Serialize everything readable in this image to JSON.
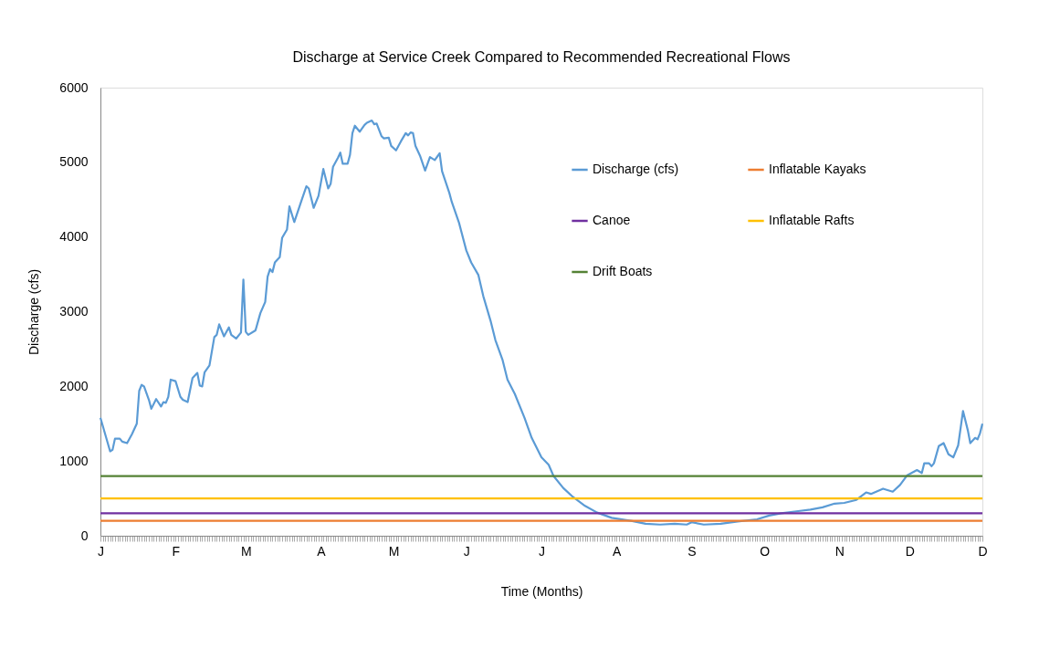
{
  "chart_data": {
    "type": "line",
    "title": "Discharge at Service Creek  Compared to Recommended Recreational Flows",
    "xlabel": "Time (Months)",
    "ylabel": "Discharge (cfs)",
    "categories": [
      "J",
      null,
      null,
      null,
      null,
      null,
      null,
      null,
      null,
      null,
      null,
      null,
      null,
      null,
      null,
      null,
      null,
      null,
      null,
      null,
      null,
      null,
      null,
      null,
      null,
      null,
      null,
      null,
      null,
      null,
      null,
      "F",
      null,
      null,
      null,
      null,
      null,
      null,
      null,
      null,
      null,
      null,
      null,
      null,
      null,
      null,
      null,
      null,
      null,
      null,
      null,
      null,
      null,
      null,
      null,
      null,
      null,
      null,
      null,
      null,
      "M",
      null,
      null,
      null,
      null,
      null,
      null,
      null,
      null,
      null,
      null,
      null,
      null,
      null,
      null,
      null,
      null,
      null,
      null,
      null,
      null,
      null,
      null,
      null,
      null,
      null,
      null,
      null,
      null,
      null,
      null,
      "A",
      null,
      null,
      null,
      null,
      null,
      null,
      null,
      null,
      null,
      null,
      null,
      null,
      null,
      null,
      null,
      null,
      null,
      null,
      null,
      null,
      null,
      null,
      null,
      null,
      null,
      null,
      null,
      null,
      null,
      "M",
      null,
      null,
      null,
      null,
      null,
      null,
      null,
      null,
      null,
      null,
      null,
      null,
      null,
      null,
      null,
      null,
      null,
      null,
      null,
      null,
      null,
      null,
      null,
      null,
      null,
      null,
      null,
      null,
      null,
      "J",
      null,
      null,
      null,
      null,
      null,
      null,
      null,
      null,
      null,
      null,
      null,
      null,
      null,
      null,
      null,
      null,
      null,
      null,
      null,
      null,
      null,
      null,
      null,
      null,
      null,
      null,
      null,
      null,
      null,
      null,
      "J",
      null,
      null,
      null,
      null,
      null,
      null,
      null,
      null,
      null,
      null,
      null,
      null,
      null,
      null,
      null,
      null,
      null,
      null,
      null,
      null,
      null,
      null,
      null,
      null,
      null,
      null,
      null,
      null,
      null,
      null,
      "A",
      null,
      null,
      null,
      null,
      null,
      null,
      null,
      null,
      null,
      null,
      null,
      null,
      null,
      null,
      null,
      null,
      null,
      null,
      null,
      null,
      null,
      null,
      null,
      null,
      null,
      null,
      null,
      null,
      null,
      null,
      "S",
      null,
      null,
      null,
      null,
      null,
      null,
      null,
      null,
      null,
      null,
      null,
      null,
      null,
      null,
      null,
      null,
      null,
      null,
      null,
      null,
      null,
      null,
      null,
      null,
      null,
      null,
      null,
      null,
      null,
      "O",
      null,
      null,
      null,
      null,
      null,
      null,
      null,
      null,
      null,
      null,
      null,
      null,
      null,
      null,
      null,
      null,
      null,
      null,
      null,
      null,
      null,
      null,
      null,
      null,
      null,
      null,
      null,
      null,
      null,
      null,
      "N",
      null,
      null,
      null,
      null,
      null,
      null,
      null,
      null,
      null,
      null,
      null,
      null,
      null,
      null,
      null,
      null,
      null,
      null,
      null,
      null,
      null,
      null,
      null,
      null,
      null,
      null,
      null,
      null,
      "D",
      null,
      null,
      null,
      null,
      null,
      null,
      null,
      null,
      null,
      null,
      null,
      null,
      null,
      null,
      null,
      null,
      null,
      null,
      null,
      null,
      null,
      null,
      null,
      null,
      null,
      null,
      null,
      null,
      null,
      "D"
    ],
    "ylim": [
      0,
      6000
    ],
    "yticks": [
      0,
      1000,
      2000,
      3000,
      4000,
      5000,
      6000
    ],
    "grid": false,
    "legend": "top right",
    "line_style": "solid",
    "marker": "none",
    "series": [
      {
        "name": "Discharge (cfs)",
        "color": "#5b9bd5",
        "values": [
          1580,
          null,
          null,
          null,
          1130,
          1150,
          1300,
          null,
          1300,
          1260,
          null,
          1240,
          null,
          1360,
          null,
          1500,
          1940,
          2020,
          2000,
          null,
          1820,
          1700,
          null,
          1830,
          null,
          1730,
          1790,
          1780,
          1860,
          2090,
          null,
          2070,
          null,
          1860,
          1820,
          null,
          1790,
          null,
          2110,
          null,
          2180,
          2010,
          2000,
          2190,
          null,
          2280,
          null,
          2660,
          2690,
          2830,
          null,
          2670,
          null,
          2790,
          2690,
          null,
          2640,
          null,
          2720,
          3430,
          2730,
          2690,
          null,
          null,
          2750,
          null,
          2980,
          null,
          3130,
          3470,
          3570,
          3530,
          3660,
          null,
          3730,
          3990,
          null,
          4100,
          4410,
          null,
          4200,
          null,
          null,
          4490,
          null,
          4680,
          4650,
          null,
          4390,
          null,
          4550,
          null,
          4910,
          null,
          4650,
          4710,
          4940,
          null,
          5060,
          5130,
          4980,
          null,
          4980,
          5100,
          5390,
          5490,
          null,
          5410,
          null,
          5500,
          5530,
          null,
          5560,
          5510,
          5520,
          null,
          5350,
          5320,
          null,
          5330,
          5220,
          null,
          5160,
          null,
          5280,
          null,
          5390,
          5360,
          5400,
          5390,
          5220,
          null,
          5080,
          null,
          4890,
          null,
          5070,
          null,
          5030,
          null,
          5120,
          4880,
          null,
          null,
          4590,
          4470,
          null,
          null,
          4190,
          null,
          null,
          3820,
          null,
          3660,
          null,
          null,
          3490,
          null,
          3210,
          null,
          null,
          2880,
          null,
          2620,
          null,
          null,
          2350,
          null,
          2090,
          null,
          null,
          1900,
          null,
          null,
          null,
          1580,
          null,
          null,
          1310,
          null,
          null,
          null,
          1050,
          null,
          null,
          950,
          null,
          800,
          null,
          null,
          null,
          640,
          null,
          null,
          null,
          520,
          null,
          null,
          null,
          null,
          400,
          null,
          null,
          null,
          null,
          310,
          null,
          null,
          null,
          null,
          null,
          240,
          null,
          null,
          null,
          null,
          null,
          210,
          null,
          200,
          null,
          null,
          null,
          null,
          null,
          160,
          null,
          null,
          null,
          null,
          null,
          150,
          null,
          null,
          null,
          null,
          null,
          160,
          null,
          null,
          null,
          null,
          150,
          null,
          180,
          null,
          null,
          null,
          null,
          150,
          null,
          null,
          null,
          null,
          null,
          null,
          160,
          null,
          null,
          null,
          null,
          null,
          null,
          190,
          null,
          null,
          null,
          null,
          null,
          null,
          null,
          220,
          null,
          null,
          null,
          null,
          270,
          null,
          null,
          null,
          null,
          300,
          null,
          null,
          null,
          null,
          null,
          null,
          330,
          null,
          null,
          null,
          null,
          350,
          null,
          null,
          null,
          null,
          380,
          null,
          null,
          null,
          null,
          430,
          null,
          null,
          null,
          440,
          null,
          null,
          null,
          null,
          480,
          null,
          null,
          null,
          580,
          null,
          560,
          null,
          null,
          null,
          null,
          630,
          null,
          null,
          null,
          590,
          null,
          null,
          680,
          null,
          null,
          810,
          null,
          null,
          null,
          880,
          null,
          840,
          970,
          null,
          970,
          930,
          970,
          null,
          1200,
          null,
          1240,
          null,
          1090,
          null,
          1050,
          null,
          1210,
          null,
          1670,
          null,
          1410,
          1240,
          null,
          1310,
          1290,
          1370,
          1500
        ]
      },
      {
        "name": "Inflatable Kayaks",
        "color": "#ed7d31",
        "values": [
          200,
          200,
          200,
          200,
          200,
          200,
          200,
          200,
          200,
          200,
          200,
          200,
          200,
          200,
          200,
          200,
          200,
          200,
          200,
          200,
          200,
          200,
          200,
          200,
          200,
          200,
          200,
          200,
          200,
          200,
          200,
          200,
          200,
          200,
          200,
          200,
          200,
          200,
          200,
          200,
          200,
          200,
          200,
          200,
          200,
          200,
          200,
          200,
          200,
          200,
          200,
          200,
          200,
          200,
          200,
          200,
          200,
          200,
          200,
          200,
          200,
          200,
          200,
          200,
          200,
          200,
          200,
          200,
          200,
          200,
          200,
          200,
          200,
          200,
          200,
          200,
          200,
          200,
          200,
          200,
          200,
          200,
          200,
          200,
          200,
          200,
          200,
          200,
          200,
          200,
          200,
          200,
          200,
          200,
          200,
          200,
          200,
          200,
          200,
          200,
          200,
          200,
          200,
          200,
          200,
          200,
          200,
          200,
          200,
          200,
          200,
          200,
          200,
          200,
          200,
          200,
          200,
          200,
          200,
          200,
          200,
          200,
          200,
          200,
          200,
          200,
          200,
          200,
          200,
          200,
          200,
          200,
          200,
          200,
          200,
          200,
          200,
          200,
          200,
          200,
          200,
          200,
          200,
          200,
          200,
          200,
          200,
          200,
          200,
          200,
          200,
          200,
          200,
          200,
          200,
          200,
          200,
          200,
          200,
          200,
          200,
          200,
          200,
          200,
          200,
          200,
          200,
          200,
          200,
          200,
          200,
          200,
          200,
          200,
          200,
          200,
          200,
          200,
          200,
          200,
          200,
          200,
          200,
          200,
          200,
          200,
          200,
          200,
          200,
          200,
          200,
          200,
          200,
          200,
          200,
          200,
          200,
          200,
          200,
          200,
          200,
          200,
          200,
          200,
          200,
          200,
          200,
          200,
          200,
          200,
          200,
          200,
          200,
          200,
          200,
          200,
          200,
          200,
          200,
          200,
          200,
          200,
          200,
          200,
          200,
          200,
          200,
          200,
          200,
          200,
          200,
          200,
          200,
          200,
          200,
          200,
          200,
          200,
          200,
          200,
          200,
          200,
          200,
          200,
          200,
          200,
          200,
          200,
          200,
          200,
          200,
          200,
          200,
          200,
          200,
          200,
          200,
          200,
          200,
          200,
          200,
          200,
          200,
          200,
          200,
          200,
          200,
          200,
          200,
          200,
          200,
          200,
          200,
          200,
          200,
          200,
          200,
          200,
          200,
          200,
          200,
          200,
          200,
          200,
          200,
          200,
          200,
          200,
          200,
          200,
          200,
          200,
          200,
          200,
          200,
          200,
          200,
          200,
          200,
          200,
          200,
          200,
          200,
          200,
          200,
          200,
          200,
          200,
          200,
          200,
          200,
          200,
          200,
          200,
          200,
          200,
          200,
          200,
          200,
          200,
          200,
          200,
          200,
          200,
          200,
          200,
          200,
          200,
          200,
          200,
          200,
          200,
          200,
          200,
          200,
          200,
          200,
          200,
          200,
          200,
          200,
          200,
          200,
          200,
          200,
          200,
          200,
          200,
          200,
          200,
          200,
          200,
          200,
          200,
          200,
          200,
          200,
          200,
          200,
          200,
          200,
          200,
          200,
          200,
          200
        ]
      },
      {
        "name": "Canoe",
        "color": "#7030a0",
        "values": [
          300,
          300,
          300,
          300,
          300,
          300,
          300,
          300,
          300,
          300,
          300,
          300,
          300,
          300,
          300,
          300,
          300,
          300,
          300,
          300,
          300,
          300,
          300,
          300,
          300,
          300,
          300,
          300,
          300,
          300,
          300,
          300,
          300,
          300,
          300,
          300,
          300,
          300,
          300,
          300,
          300,
          300,
          300,
          300,
          300,
          300,
          300,
          300,
          300,
          300,
          300,
          300,
          300,
          300,
          300,
          300,
          300,
          300,
          300,
          300,
          300,
          300,
          300,
          300,
          300,
          300,
          300,
          300,
          300,
          300,
          300,
          300,
          300,
          300,
          300,
          300,
          300,
          300,
          300,
          300,
          300,
          300,
          300,
          300,
          300,
          300,
          300,
          300,
          300,
          300,
          300,
          300,
          300,
          300,
          300,
          300,
          300,
          300,
          300,
          300,
          300,
          300,
          300,
          300,
          300,
          300,
          300,
          300,
          300,
          300,
          300,
          300,
          300,
          300,
          300,
          300,
          300,
          300,
          300,
          300,
          300,
          300,
          300,
          300,
          300,
          300,
          300,
          300,
          300,
          300,
          300,
          300,
          300,
          300,
          300,
          300,
          300,
          300,
          300,
          300,
          300,
          300,
          300,
          300,
          300,
          300,
          300,
          300,
          300,
          300,
          300,
          300,
          300,
          300,
          300,
          300,
          300,
          300,
          300,
          300,
          300,
          300,
          300,
          300,
          300,
          300,
          300,
          300,
          300,
          300,
          300,
          300,
          300,
          300,
          300,
          300,
          300,
          300,
          300,
          300,
          300,
          300,
          300,
          300,
          300,
          300,
          300,
          300,
          300,
          300,
          300,
          300,
          300,
          300,
          300,
          300,
          300,
          300,
          300,
          300,
          300,
          300,
          300,
          300,
          300,
          300,
          300,
          300,
          300,
          300,
          300,
          300,
          300,
          300,
          300,
          300,
          300,
          300,
          300,
          300,
          300,
          300,
          300,
          300,
          300,
          300,
          300,
          300,
          300,
          300,
          300,
          300,
          300,
          300,
          300,
          300,
          300,
          300,
          300,
          300,
          300,
          300,
          300,
          300,
          300,
          300,
          300,
          300,
          300,
          300,
          300,
          300,
          300,
          300,
          300,
          300,
          300,
          300,
          300,
          300,
          300,
          300,
          300,
          300,
          300,
          300,
          300,
          300,
          300,
          300,
          300,
          300,
          300,
          300,
          300,
          300,
          300,
          300,
          300,
          300,
          300,
          300,
          300,
          300,
          300,
          300,
          300,
          300,
          300,
          300,
          300,
          300,
          300,
          300,
          300,
          300,
          300,
          300,
          300,
          300,
          300,
          300,
          300,
          300,
          300,
          300,
          300,
          300,
          300,
          300,
          300,
          300,
          300,
          300,
          300,
          300,
          300,
          300,
          300,
          300,
          300,
          300,
          300,
          300,
          300,
          300,
          300,
          300,
          300,
          300,
          300,
          300,
          300,
          300,
          300,
          300,
          300,
          300,
          300,
          300,
          300,
          300,
          300,
          300,
          300,
          300,
          300,
          300,
          300,
          300,
          300,
          300,
          300,
          300,
          300,
          300,
          300,
          300,
          300,
          300,
          300,
          300,
          300,
          300,
          300
        ]
      },
      {
        "name": "Inflatable Rafts",
        "color": "#ffc000",
        "values": [
          500,
          500,
          500,
          500,
          500,
          500,
          500,
          500,
          500,
          500,
          500,
          500,
          500,
          500,
          500,
          500,
          500,
          500,
          500,
          500,
          500,
          500,
          500,
          500,
          500,
          500,
          500,
          500,
          500,
          500,
          500,
          500,
          500,
          500,
          500,
          500,
          500,
          500,
          500,
          500,
          500,
          500,
          500,
          500,
          500,
          500,
          500,
          500,
          500,
          500,
          500,
          500,
          500,
          500,
          500,
          500,
          500,
          500,
          500,
          500,
          500,
          500,
          500,
          500,
          500,
          500,
          500,
          500,
          500,
          500,
          500,
          500,
          500,
          500,
          500,
          500,
          500,
          500,
          500,
          500,
          500,
          500,
          500,
          500,
          500,
          500,
          500,
          500,
          500,
          500,
          500,
          500,
          500,
          500,
          500,
          500,
          500,
          500,
          500,
          500,
          500,
          500,
          500,
          500,
          500,
          500,
          500,
          500,
          500,
          500,
          500,
          500,
          500,
          500,
          500,
          500,
          500,
          500,
          500,
          500,
          500,
          500,
          500,
          500,
          500,
          500,
          500,
          500,
          500,
          500,
          500,
          500,
          500,
          500,
          500,
          500,
          500,
          500,
          500,
          500,
          500,
          500,
          500,
          500,
          500,
          500,
          500,
          500,
          500,
          500,
          500,
          500,
          500,
          500,
          500,
          500,
          500,
          500,
          500,
          500,
          500,
          500,
          500,
          500,
          500,
          500,
          500,
          500,
          500,
          500,
          500,
          500,
          500,
          500,
          500,
          500,
          500,
          500,
          500,
          500,
          500,
          500,
          500,
          500,
          500,
          500,
          500,
          500,
          500,
          500,
          500,
          500,
          500,
          500,
          500,
          500,
          500,
          500,
          500,
          500,
          500,
          500,
          500,
          500,
          500,
          500,
          500,
          500,
          500,
          500,
          500,
          500,
          500,
          500,
          500,
          500,
          500,
          500,
          500,
          500,
          500,
          500,
          500,
          500,
          500,
          500,
          500,
          500,
          500,
          500,
          500,
          500,
          500,
          500,
          500,
          500,
          500,
          500,
          500,
          500,
          500,
          500,
          500,
          500,
          500,
          500,
          500,
          500,
          500,
          500,
          500,
          500,
          500,
          500,
          500,
          500,
          500,
          500,
          500,
          500,
          500,
          500,
          500,
          500,
          500,
          500,
          500,
          500,
          500,
          500,
          500,
          500,
          500,
          500,
          500,
          500,
          500,
          500,
          500,
          500,
          500,
          500,
          500,
          500,
          500,
          500,
          500,
          500,
          500,
          500,
          500,
          500,
          500,
          500,
          500,
          500,
          500,
          500,
          500,
          500,
          500,
          500,
          500,
          500,
          500,
          500,
          500,
          500,
          500,
          500,
          500,
          500,
          500,
          500,
          500,
          500,
          500,
          500,
          500,
          500,
          500,
          500,
          500,
          500,
          500,
          500,
          500,
          500,
          500,
          500,
          500,
          500,
          500,
          500,
          500,
          500,
          500,
          500,
          500,
          500,
          500,
          500,
          500,
          500,
          500,
          500,
          500,
          500,
          500,
          500,
          500,
          500,
          500,
          500,
          500,
          500,
          500,
          500,
          500,
          500,
          500,
          500,
          500,
          500,
          500
        ]
      },
      {
        "name": "Drift Boats",
        "color": "#548235",
        "values": [
          800,
          800,
          800,
          800,
          800,
          800,
          800,
          800,
          800,
          800,
          800,
          800,
          800,
          800,
          800,
          800,
          800,
          800,
          800,
          800,
          800,
          800,
          800,
          800,
          800,
          800,
          800,
          800,
          800,
          800,
          800,
          800,
          800,
          800,
          800,
          800,
          800,
          800,
          800,
          800,
          800,
          800,
          800,
          800,
          800,
          800,
          800,
          800,
          800,
          800,
          800,
          800,
          800,
          800,
          800,
          800,
          800,
          800,
          800,
          800,
          800,
          800,
          800,
          800,
          800,
          800,
          800,
          800,
          800,
          800,
          800,
          800,
          800,
          800,
          800,
          800,
          800,
          800,
          800,
          800,
          800,
          800,
          800,
          800,
          800,
          800,
          800,
          800,
          800,
          800,
          800,
          800,
          800,
          800,
          800,
          800,
          800,
          800,
          800,
          800,
          800,
          800,
          800,
          800,
          800,
          800,
          800,
          800,
          800,
          800,
          800,
          800,
          800,
          800,
          800,
          800,
          800,
          800,
          800,
          800,
          800,
          800,
          800,
          800,
          800,
          800,
          800,
          800,
          800,
          800,
          800,
          800,
          800,
          800,
          800,
          800,
          800,
          800,
          800,
          800,
          800,
          800,
          800,
          800,
          800,
          800,
          800,
          800,
          800,
          800,
          800,
          800,
          800,
          800,
          800,
          800,
          800,
          800,
          800,
          800,
          800,
          800,
          800,
          800,
          800,
          800,
          800,
          800,
          800,
          800,
          800,
          800,
          800,
          800,
          800,
          800,
          800,
          800,
          800,
          800,
          800,
          800,
          800,
          800,
          800,
          800,
          800,
          800,
          800,
          800,
          800,
          800,
          800,
          800,
          800,
          800,
          800,
          800,
          800,
          800,
          800,
          800,
          800,
          800,
          800,
          800,
          800,
          800,
          800,
          800,
          800,
          800,
          800,
          800,
          800,
          800,
          800,
          800,
          800,
          800,
          800,
          800,
          800,
          800,
          800,
          800,
          800,
          800,
          800,
          800,
          800,
          800,
          800,
          800,
          800,
          800,
          800,
          800,
          800,
          800,
          800,
          800,
          800,
          800,
          800,
          800,
          800,
          800,
          800,
          800,
          800,
          800,
          800,
          800,
          800,
          800,
          800,
          800,
          800,
          800,
          800,
          800,
          800,
          800,
          800,
          800,
          800,
          800,
          800,
          800,
          800,
          800,
          800,
          800,
          800,
          800,
          800,
          800,
          800,
          800,
          800,
          800,
          800,
          800,
          800,
          800,
          800,
          800,
          800,
          800,
          800,
          800,
          800,
          800,
          800,
          800,
          800,
          800,
          800,
          800,
          800,
          800,
          800,
          800,
          800,
          800,
          800,
          800,
          800,
          800,
          800,
          800,
          800,
          800,
          800,
          800,
          800,
          800,
          800,
          800,
          800,
          800,
          800,
          800,
          800,
          800,
          800,
          800,
          800,
          800,
          800,
          800,
          800,
          800,
          800,
          800,
          800,
          800,
          800,
          800,
          800,
          800,
          800,
          800,
          800,
          800,
          800,
          800,
          800,
          800,
          800,
          800,
          800,
          800,
          800,
          800,
          800,
          800,
          800,
          800,
          800,
          800,
          800,
          800,
          800
        ]
      }
    ]
  }
}
